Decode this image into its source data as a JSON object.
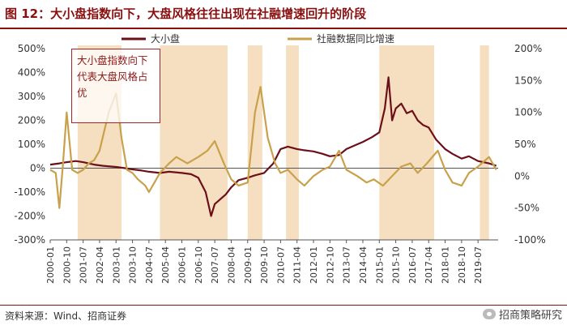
{
  "title": "图 12：大小盘指数向下，大盘风格往往出现在社融增速回升的阶段",
  "annotation": "大小盘指数向下代表大盘风格占优",
  "source": "资料来源：Wind、招商证券",
  "watermark": "招商策略研究",
  "colors": {
    "series1": "#6b0f1a",
    "series2": "#c8a14a",
    "shade": "#f5dfc0",
    "title": "#8a1010"
  },
  "chart_data": {
    "type": "line",
    "title": "图 12：大小盘指数向下，大盘风格往往出现在社融增速回升的阶段",
    "x_range": [
      "2000-01",
      "2020-06"
    ],
    "x_ticks": [
      "2000-01",
      "2000-10",
      "2001-07",
      "2002-04",
      "2003-01",
      "2003-10",
      "2004-07",
      "2005-04",
      "2006-01",
      "2006-10",
      "2007-07",
      "2008-04",
      "2009-01",
      "2009-10",
      "2010-07",
      "2011-04",
      "2012-01",
      "2012-10",
      "2013-07",
      "2014-04",
      "2015-01",
      "2015-10",
      "2016-07",
      "2017-04",
      "2018-01",
      "2018-10",
      "2019-07"
    ],
    "y_left": {
      "range": [
        -300,
        500
      ],
      "ticks": [
        "-300%",
        "-200%",
        "-100%",
        "0%",
        "100%",
        "200%",
        "300%",
        "400%",
        "500%"
      ]
    },
    "y_right": {
      "range": [
        -100,
        200
      ],
      "ticks": [
        "-100%",
        "-50%",
        "0%",
        "50%",
        "100%",
        "150%",
        "200%"
      ]
    },
    "legend": {
      "position": "top",
      "entries": [
        "大小盘",
        "社融数据同比增速"
      ]
    },
    "shaded_periods": [
      [
        "2001-04",
        "2003-04"
      ],
      [
        "2005-01",
        "2008-02"
      ],
      [
        "2009-01",
        "2009-09"
      ],
      [
        "2010-10",
        "2011-05"
      ],
      [
        "2015-01",
        "2017-07"
      ],
      [
        "2019-08",
        "2020-01"
      ]
    ],
    "series": [
      {
        "name": "大小盘",
        "axis": "left",
        "points": [
          [
            "2000-01",
            15
          ],
          [
            "2000-06",
            20
          ],
          [
            "2000-10",
            25
          ],
          [
            "2001-03",
            30
          ],
          [
            "2001-07",
            25
          ],
          [
            "2002-01",
            15
          ],
          [
            "2002-06",
            10
          ],
          [
            "2003-01",
            5
          ],
          [
            "2003-06",
            0
          ],
          [
            "2003-10",
            -5
          ],
          [
            "2004-03",
            -10
          ],
          [
            "2004-07",
            -15
          ],
          [
            "2005-01",
            -20
          ],
          [
            "2005-06",
            -15
          ],
          [
            "2006-01",
            -20
          ],
          [
            "2006-06",
            -25
          ],
          [
            "2006-10",
            -40
          ],
          [
            "2007-02",
            -100
          ],
          [
            "2007-05",
            -200
          ],
          [
            "2007-07",
            -150
          ],
          [
            "2008-01",
            -110
          ],
          [
            "2008-04",
            -80
          ],
          [
            "2008-08",
            -50
          ],
          [
            "2009-01",
            -40
          ],
          [
            "2009-05",
            -30
          ],
          [
            "2009-10",
            -20
          ],
          [
            "2010-03",
            20
          ],
          [
            "2010-07",
            80
          ],
          [
            "2010-11",
            90
          ],
          [
            "2011-04",
            80
          ],
          [
            "2011-08",
            75
          ],
          [
            "2012-01",
            70
          ],
          [
            "2012-06",
            60
          ],
          [
            "2012-10",
            50
          ],
          [
            "2013-03",
            55
          ],
          [
            "2013-07",
            80
          ],
          [
            "2014-01",
            100
          ],
          [
            "2014-04",
            110
          ],
          [
            "2014-09",
            130
          ],
          [
            "2015-01",
            150
          ],
          [
            "2015-04",
            250
          ],
          [
            "2015-06",
            380
          ],
          [
            "2015-08",
            200
          ],
          [
            "2015-10",
            250
          ],
          [
            "2016-01",
            270
          ],
          [
            "2016-04",
            230
          ],
          [
            "2016-07",
            240
          ],
          [
            "2016-10",
            200
          ],
          [
            "2017-01",
            180
          ],
          [
            "2017-04",
            170
          ],
          [
            "2017-08",
            120
          ],
          [
            "2018-01",
            80
          ],
          [
            "2018-05",
            60
          ],
          [
            "2018-10",
            40
          ],
          [
            "2019-02",
            50
          ],
          [
            "2019-07",
            30
          ],
          [
            "2020-01",
            20
          ],
          [
            "2020-05",
            10
          ]
        ]
      },
      {
        "name": "社融数据同比增速",
        "axis": "right",
        "points": [
          [
            "2000-01",
            10
          ],
          [
            "2000-04",
            5
          ],
          [
            "2000-06",
            -50
          ],
          [
            "2000-08",
            20
          ],
          [
            "2000-10",
            100
          ],
          [
            "2001-01",
            10
          ],
          [
            "2001-04",
            5
          ],
          [
            "2001-07",
            10
          ],
          [
            "2001-10",
            20
          ],
          [
            "2002-01",
            25
          ],
          [
            "2002-04",
            40
          ],
          [
            "2002-09",
            100
          ],
          [
            "2003-01",
            130
          ],
          [
            "2003-04",
            60
          ],
          [
            "2003-07",
            10
          ],
          [
            "2003-10",
            5
          ],
          [
            "2004-01",
            -5
          ],
          [
            "2004-05",
            -15
          ],
          [
            "2004-07",
            -25
          ],
          [
            "2004-10",
            -10
          ],
          [
            "2005-01",
            5
          ],
          [
            "2005-06",
            20
          ],
          [
            "2005-10",
            30
          ],
          [
            "2006-04",
            20
          ],
          [
            "2006-10",
            30
          ],
          [
            "2007-03",
            40
          ],
          [
            "2007-07",
            55
          ],
          [
            "2007-12",
            20
          ],
          [
            "2008-04",
            -5
          ],
          [
            "2008-08",
            -15
          ],
          [
            "2009-01",
            -10
          ],
          [
            "2009-05",
            100
          ],
          [
            "2009-08",
            140
          ],
          [
            "2009-12",
            60
          ],
          [
            "2010-04",
            20
          ],
          [
            "2010-07",
            5
          ],
          [
            "2010-11",
            10
          ],
          [
            "2011-04",
            -5
          ],
          [
            "2011-08",
            -15
          ],
          [
            "2012-01",
            0
          ],
          [
            "2012-06",
            10
          ],
          [
            "2012-10",
            15
          ],
          [
            "2013-03",
            40
          ],
          [
            "2013-07",
            10
          ],
          [
            "2014-01",
            0
          ],
          [
            "2014-06",
            -10
          ],
          [
            "2014-10",
            -5
          ],
          [
            "2015-03",
            -15
          ],
          [
            "2015-08",
            0
          ],
          [
            "2016-01",
            15
          ],
          [
            "2016-06",
            20
          ],
          [
            "2016-10",
            5
          ],
          [
            "2017-03",
            20
          ],
          [
            "2017-09",
            40
          ],
          [
            "2018-01",
            10
          ],
          [
            "2018-05",
            -10
          ],
          [
            "2018-10",
            -15
          ],
          [
            "2019-02",
            5
          ],
          [
            "2019-07",
            15
          ],
          [
            "2020-01",
            30
          ],
          [
            "2020-05",
            10
          ]
        ]
      }
    ]
  }
}
